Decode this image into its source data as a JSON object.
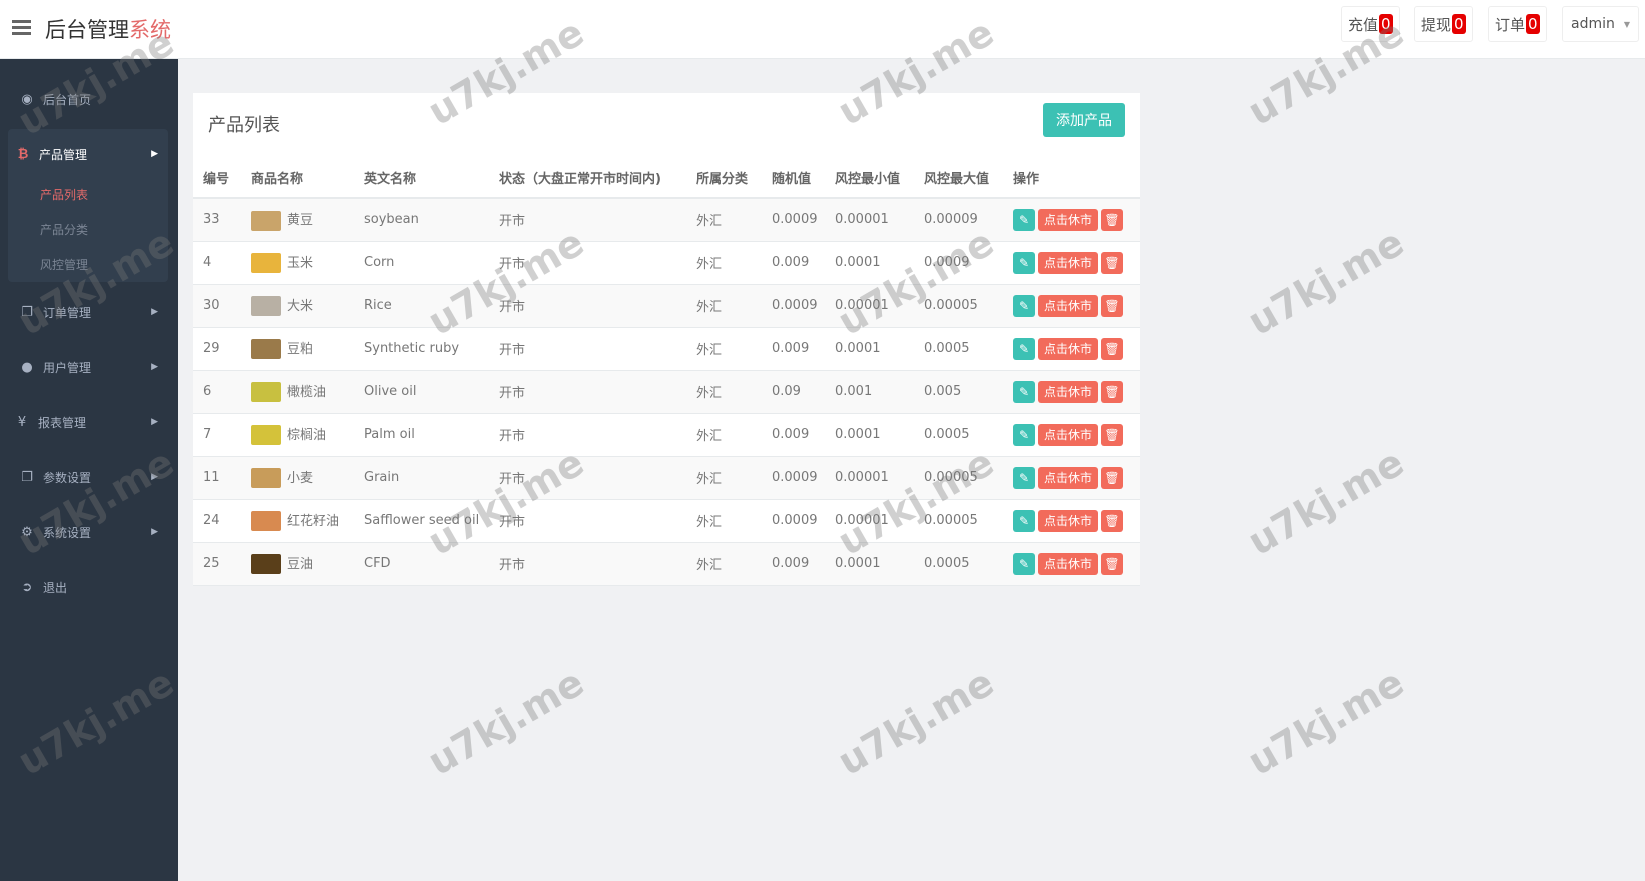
{
  "header": {
    "title_main": "后台管理",
    "title_accent": "系统",
    "buttons": [
      {
        "label": "充值",
        "count": "0"
      },
      {
        "label": "提现",
        "count": "0"
      },
      {
        "label": "订单",
        "count": "0"
      }
    ],
    "user": "admin"
  },
  "sidebar": {
    "items": [
      {
        "label": "后台首页",
        "icon": "dashboard-icon"
      },
      {
        "label": "产品管理",
        "icon": "bitcoin-icon"
      },
      {
        "label": "订单管理",
        "icon": "copy-icon"
      },
      {
        "label": "用户管理",
        "icon": "user-icon"
      },
      {
        "label": "报表管理",
        "icon": "yen-icon"
      },
      {
        "label": "参数设置",
        "icon": "copy-icon"
      },
      {
        "label": "系统设置",
        "icon": "gears-icon"
      },
      {
        "label": "退出",
        "icon": "sign-out-icon"
      }
    ],
    "sub_items": [
      "产品列表",
      "产品分类",
      "风控管理"
    ]
  },
  "main": {
    "title": "产品列表",
    "add_button": "添加产品",
    "columns": [
      "编号",
      "商品名称",
      "英文名称",
      "状态（大盘正常开市时间内)",
      "所属分类",
      "随机值",
      "风控最小值",
      "风控最大值",
      "操作"
    ],
    "action_label": "点击休市",
    "rows": [
      {
        "id": "33",
        "name": "黄豆",
        "en": "soybean",
        "status": "开市",
        "category": "外汇",
        "random": "0.0009",
        "min": "0.00001",
        "max": "0.00009",
        "thumb": "#c9a46a"
      },
      {
        "id": "4",
        "name": "玉米",
        "en": "Corn",
        "status": "开市",
        "category": "外汇",
        "random": "0.009",
        "min": "0.0001",
        "max": "0.0009",
        "thumb": "#e8b43c"
      },
      {
        "id": "30",
        "name": "大米",
        "en": "Rice",
        "status": "开市",
        "category": "外汇",
        "random": "0.0009",
        "min": "0.00001",
        "max": "0.00005",
        "thumb": "#b8b0a4"
      },
      {
        "id": "29",
        "name": "豆粕",
        "en": "Synthetic ruby",
        "status": "开市",
        "category": "外汇",
        "random": "0.009",
        "min": "0.0001",
        "max": "0.0005",
        "thumb": "#9a7a4a"
      },
      {
        "id": "6",
        "name": "橄榄油",
        "en": "Olive oil",
        "status": "开市",
        "category": "外汇",
        "random": "0.09",
        "min": "0.001",
        "max": "0.005",
        "thumb": "#c8c040"
      },
      {
        "id": "7",
        "name": "棕榈油",
        "en": "Palm oil",
        "status": "开市",
        "category": "外汇",
        "random": "0.009",
        "min": "0.0001",
        "max": "0.0005",
        "thumb": "#d4c23a"
      },
      {
        "id": "11",
        "name": "小麦",
        "en": "Grain",
        "status": "开市",
        "category": "外汇",
        "random": "0.0009",
        "min": "0.00001",
        "max": "0.00005",
        "thumb": "#c89c5a"
      },
      {
        "id": "24",
        "name": "红花籽油",
        "en": "Safflower seed oil",
        "status": "开市",
        "category": "外汇",
        "random": "0.0009",
        "min": "0.00001",
        "max": "0.00005",
        "thumb": "#d88a50"
      },
      {
        "id": "25",
        "name": "豆油",
        "en": "CFD",
        "status": "开市",
        "category": "外汇",
        "random": "0.009",
        "min": "0.0001",
        "max": "0.0005",
        "thumb": "#5a3f1a"
      }
    ]
  },
  "watermark": "u7kj.me"
}
